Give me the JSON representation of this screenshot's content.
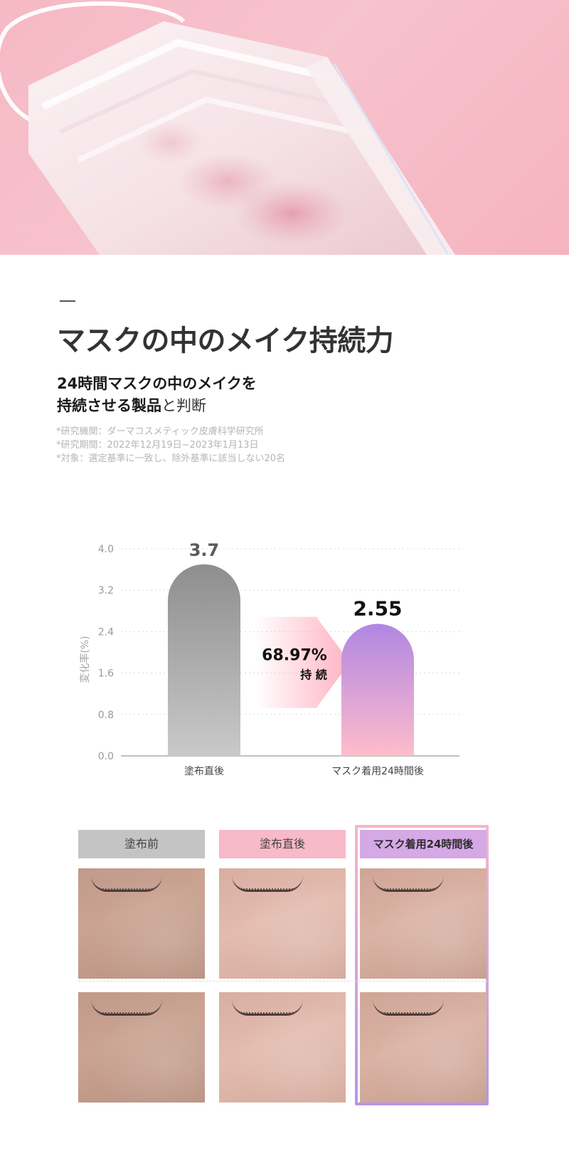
{
  "header": {
    "title": "マスクの中のメイク持続力",
    "subtitle_line1": "24時間マスクの中のメイクを",
    "subtitle_line2_bold": "持続させる製品",
    "subtitle_line2_light": "と判断",
    "notes": [
      "*研究機関：ダーマコスメティック皮膚科学研究所",
      "*研究期間：2022年12月19日~2023年1月13日",
      "*対象：選定基準に一致し、除外基準に該当しない20名"
    ]
  },
  "chart_data": {
    "type": "bar",
    "categories": [
      "塗布直後",
      "マスク着用24時間後"
    ],
    "values": [
      3.7,
      2.55
    ],
    "value_labels": [
      "3.7",
      "2.55"
    ],
    "ylabel": "変化率(%)",
    "ylim": [
      0,
      4.0
    ],
    "yticks": [
      "0.0",
      "0.8",
      "1.6",
      "2.4",
      "3.2",
      "4.0"
    ],
    "ytick_values": [
      0,
      0.8,
      1.6,
      2.4,
      3.2,
      4.0
    ],
    "grid": true,
    "annotation": {
      "percent": "68.97%",
      "label": "持 続"
    },
    "colors": {
      "bar1_top": "#8e8e8e",
      "bar1_bottom": "#c9c9c9",
      "bar2_top": "#b086e3",
      "bar2_bottom": "#ffbccb",
      "arrow": "#ffb2c2"
    }
  },
  "comparison": {
    "columns": [
      {
        "label": "塗布前",
        "color": "#c4c4c4"
      },
      {
        "label": "塗布直後",
        "color": "#f8b9c8"
      },
      {
        "label": "マスク着用24時間後",
        "color": "#d5a8e6"
      }
    ]
  }
}
